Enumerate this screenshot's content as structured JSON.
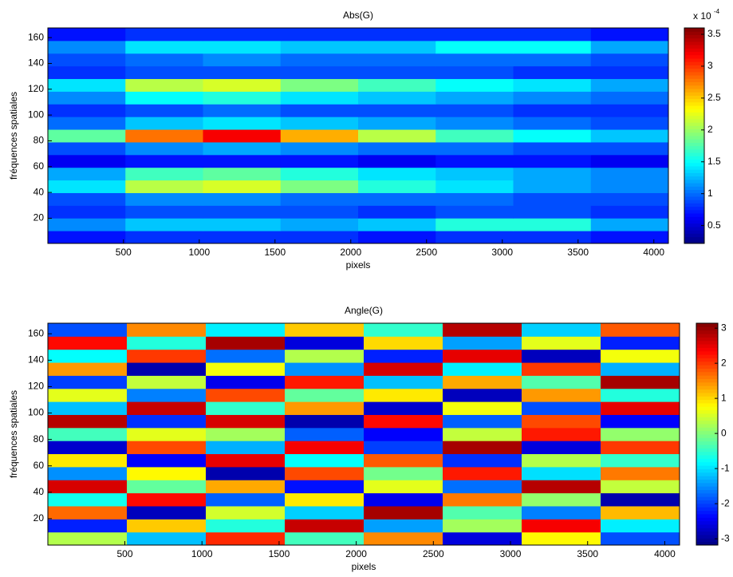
{
  "chart_data": [
    {
      "type": "heatmap",
      "title": "Abs(G)",
      "xlabel": "pixels",
      "ylabel": "fréquences spatiales",
      "xlim": [
        1,
        4096
      ],
      "ylim": [
        0.5,
        167.5
      ],
      "xticks": [
        500,
        1000,
        1500,
        2000,
        2500,
        3000,
        3500,
        4000
      ],
      "yticks": [
        20,
        40,
        60,
        80,
        100,
        120,
        140,
        160
      ],
      "colormap": "jet",
      "clim": [
        0.22,
        3.6
      ],
      "cticks": [
        0.5,
        1,
        1.5,
        2,
        2.5,
        3,
        3.5
      ],
      "colorbar_multiplier": "x 10",
      "colorbar_exponent": "-4",
      "z": [
        [
          0.7,
          0.8,
          0.8,
          0.8,
          0.7,
          0.8,
          0.8,
          0.7
        ],
        [
          1.1,
          1.3,
          1.3,
          1.2,
          1.3,
          1.6,
          1.6,
          1.2
        ],
        [
          0.8,
          0.9,
          0.9,
          0.9,
          0.8,
          0.9,
          0.9,
          0.8
        ],
        [
          0.9,
          1.1,
          1.1,
          1.0,
          1.0,
          1.0,
          0.9,
          0.9
        ],
        [
          1.4,
          2.1,
          2.2,
          1.9,
          1.6,
          1.4,
          1.2,
          1.1
        ],
        [
          1.2,
          1.7,
          1.8,
          1.6,
          1.4,
          1.3,
          1.2,
          1.1
        ],
        [
          0.6,
          0.7,
          0.7,
          0.7,
          0.6,
          0.7,
          0.7,
          0.6
        ],
        [
          0.9,
          1.1,
          1.2,
          1.1,
          1.0,
          1.0,
          0.9,
          0.9
        ],
        [
          1.8,
          2.8,
          3.2,
          2.6,
          2.1,
          1.7,
          1.5,
          1.3
        ],
        [
          1.0,
          1.3,
          1.4,
          1.3,
          1.2,
          1.1,
          1.0,
          0.9
        ],
        [
          0.8,
          0.9,
          1.0,
          0.9,
          0.9,
          0.9,
          0.8,
          0.8
        ],
        [
          1.1,
          1.5,
          1.6,
          1.4,
          1.3,
          1.2,
          1.1,
          1.0
        ],
        [
          1.4,
          2.1,
          2.2,
          1.9,
          1.7,
          1.5,
          1.4,
          1.2
        ],
        [
          0.8,
          0.9,
          0.9,
          0.9,
          0.9,
          0.9,
          0.8,
          0.8
        ],
        [
          0.9,
          1.0,
          1.1,
          1.0,
          1.0,
          1.0,
          1.0,
          0.9
        ],
        [
          1.1,
          1.4,
          1.4,
          1.3,
          1.3,
          1.5,
          1.5,
          1.2
        ],
        [
          0.7,
          0.8,
          0.8,
          0.8,
          0.8,
          0.8,
          0.8,
          0.7
        ]
      ]
    },
    {
      "type": "heatmap",
      "title": "Angle(G)",
      "xlabel": "pixels",
      "ylabel": "fréquences spatiales",
      "xlim": [
        1,
        4096
      ],
      "ylim": [
        0,
        168
      ],
      "xticks": [
        500,
        1000,
        1500,
        2000,
        2500,
        3000,
        3500,
        4000
      ],
      "yticks": [
        20,
        40,
        60,
        80,
        100,
        120,
        140,
        160
      ],
      "colormap": "jet",
      "clim": [
        -3.18,
        3.14
      ],
      "cticks": [
        -3,
        -2,
        -1,
        0,
        1,
        2,
        3
      ],
      "z": [
        [
          0.3,
          -1.2,
          2.1,
          -0.4,
          1.5,
          -2.6,
          0.8,
          -1.9
        ],
        [
          -2.2,
          1.1,
          -0.6,
          2.7,
          -1.4,
          0.2,
          2.4,
          -0.9
        ],
        [
          1.7,
          -2.8,
          0.5,
          -1.1,
          2.9,
          -0.3,
          -1.6,
          1.2
        ],
        [
          -0.7,
          2.3,
          -1.8,
          0.9,
          -2.5,
          1.6,
          0.1,
          -2.9
        ],
        [
          2.6,
          -0.2,
          1.3,
          -2.3,
          0.6,
          -1.7,
          2.8,
          0.4
        ],
        [
          -1.5,
          0.8,
          -2.9,
          1.9,
          -0.1,
          2.2,
          -1.0,
          1.6
        ],
        [
          0.9,
          -2.4,
          2.5,
          -0.8,
          1.8,
          -2.1,
          0.3,
          -0.5
        ],
        [
          -2.7,
          1.9,
          -1.3,
          2.4,
          -2.0,
          2.9,
          -2.6,
          2.0
        ],
        [
          -0.4,
          0.6,
          0.2,
          -1.8,
          -2.4,
          0.4,
          2.2,
          0.1
        ],
        [
          2.8,
          -2.1,
          2.6,
          -2.9,
          2.3,
          -1.8,
          1.9,
          -2.4
        ],
        [
          -1.2,
          2.7,
          -0.5,
          1.4,
          -2.7,
          0.7,
          -1.9,
          2.5
        ],
        [
          0.6,
          -1.6,
          1.9,
          -0.2,
          0.9,
          -2.8,
          1.4,
          -0.6
        ],
        [
          -2.0,
          0.4,
          -2.5,
          2.2,
          -1.2,
          1.3,
          -0.3,
          2.9
        ],
        [
          1.4,
          -2.9,
          0.7,
          -1.5,
          2.6,
          -0.9,
          2.0,
          -1.3
        ],
        [
          -0.8,
          2.0,
          -1.7,
          0.3,
          -2.2,
          2.5,
          -2.8,
          0.7
        ],
        [
          2.3,
          -0.6,
          2.9,
          -2.6,
          1.0,
          -1.4,
          0.6,
          -2.2
        ],
        [
          -1.9,
          1.5,
          -0.9,
          1.1,
          -0.5,
          2.8,
          -1.1,
          1.8
        ]
      ]
    }
  ]
}
